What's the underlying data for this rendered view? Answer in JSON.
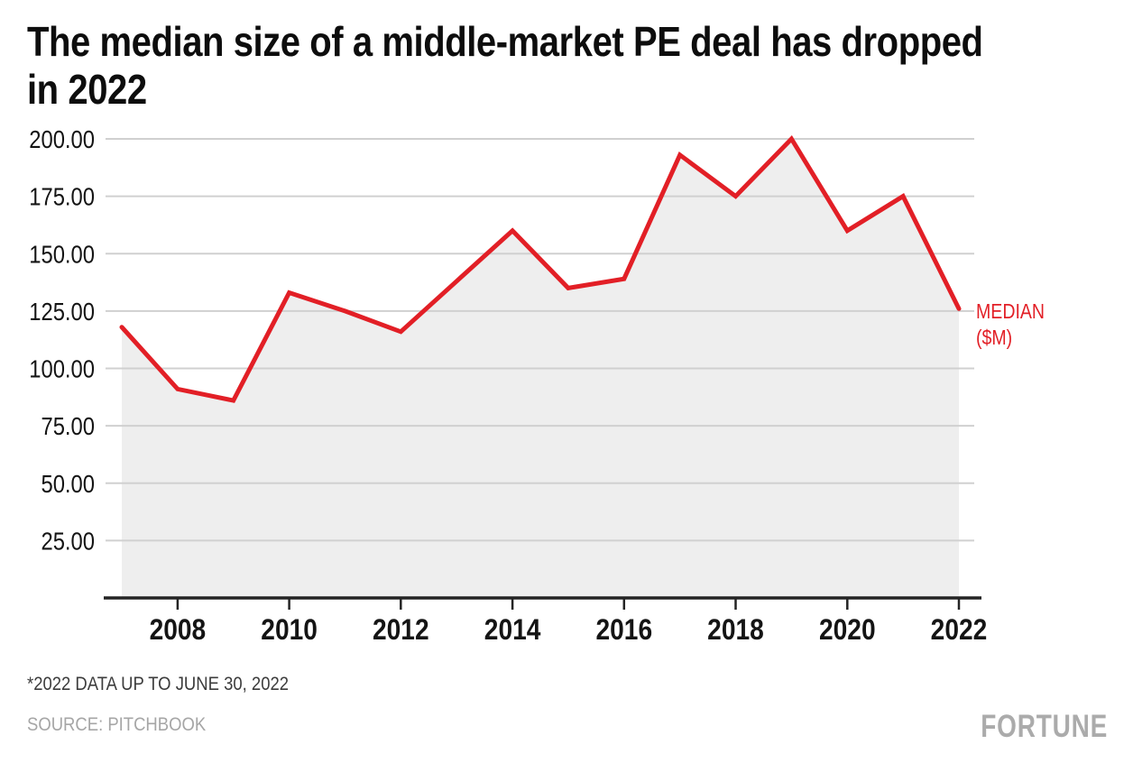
{
  "title": {
    "line1": "The median size of a middle-market PE deal has dropped",
    "line2": "in 2022"
  },
  "series_label": {
    "line1": "MEDIAN",
    "line2": "($M)"
  },
  "footnote": "*2022 DATA UP TO JUNE 30, 2022",
  "source": "SOURCE: PITCHBOOK",
  "brand": "FORTUNE",
  "colors": {
    "line": "#e21f26",
    "area": "#eeeeee",
    "grid": "#d0d0d0",
    "axis": "#242424",
    "tick_label": "#141414",
    "title": "#0d0d0d",
    "footnote": "#3c3c3c",
    "muted": "#a6a6a6"
  },
  "chart_data": {
    "type": "line",
    "title": "The median size of a middle-market PE deal has dropped in 2022",
    "xlabel": "",
    "ylabel": "MEDIAN ($M)",
    "x": [
      2007,
      2008,
      2009,
      2010,
      2011,
      2012,
      2013,
      2014,
      2015,
      2016,
      2017,
      2018,
      2019,
      2020,
      2021,
      2022
    ],
    "series": [
      {
        "name": "MEDIAN ($M)",
        "values": [
          118,
          91,
          86,
          133,
          125,
          116,
          138,
          160,
          135,
          139,
          193,
          175,
          200,
          160,
          175,
          126
        ]
      }
    ],
    "x_ticks": [
      2008,
      2010,
      2012,
      2014,
      2016,
      2018,
      2020,
      2022
    ],
    "yticks": [
      25,
      50,
      75,
      100,
      125,
      150,
      175,
      200
    ],
    "ytick_decimals": 2,
    "ylim": [
      0,
      210
    ],
    "grid": true,
    "area_fill": true,
    "legend_position": "right-of-line-end",
    "annotation": "MEDIAN ($M)"
  }
}
